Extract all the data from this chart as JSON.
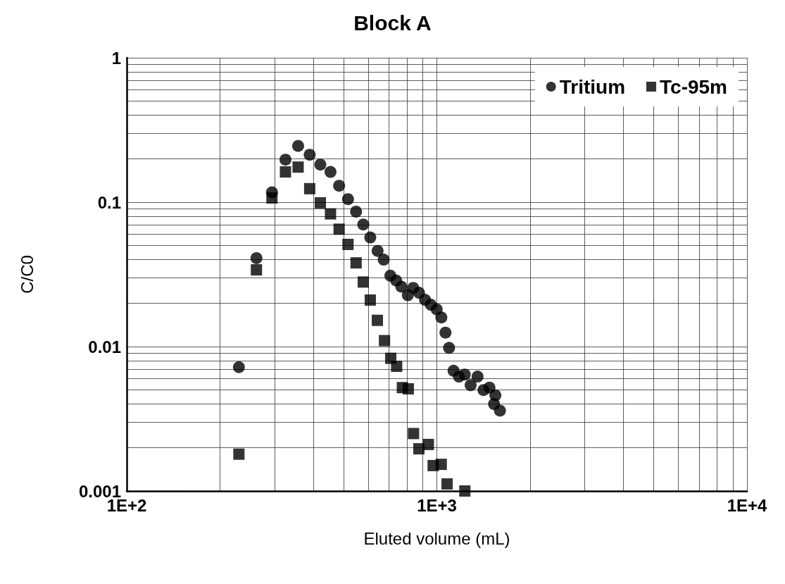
{
  "chart_data": {
    "type": "scatter",
    "title": "Block A",
    "xlabel": "Eluted volume (mL)",
    "ylabel": "C/C0",
    "log": "xy",
    "grid": true,
    "legend": "top right",
    "xlim": [
      100,
      10000
    ],
    "xticks": [
      {
        "value": 100,
        "label": "1E+2"
      },
      {
        "value": 1000,
        "label": "1E+3"
      },
      {
        "value": 10000,
        "label": "1E+4"
      }
    ],
    "ylim": [
      0.001,
      1
    ],
    "yticks": [
      0.001,
      0.01,
      0.1,
      1
    ],
    "series": [
      {
        "name": "Tritium",
        "color": "#000000",
        "marker": "circle",
        "x": [
          230,
          262,
          294,
          325,
          357,
          389,
          421,
          454,
          484,
          517,
          549,
          579,
          610,
          644,
          674,
          708,
          739,
          768,
          806,
          839,
          876,
          916,
          956,
          999,
          1034,
          1066,
          1095,
          1132,
          1178,
          1230,
          1285,
          1353,
          1414,
          1478,
          1544,
          1529,
          1598
        ],
        "values": [
          0.0072,
          0.041,
          0.117,
          0.197,
          0.245,
          0.213,
          0.182,
          0.162,
          0.13,
          0.105,
          0.086,
          0.07,
          0.057,
          0.046,
          0.04,
          0.031,
          0.0287,
          0.026,
          0.0227,
          0.0255,
          0.0236,
          0.0211,
          0.0195,
          0.0181,
          0.0159,
          0.0125,
          0.0098,
          0.0068,
          0.0062,
          0.0064,
          0.0054,
          0.0062,
          0.005,
          0.0052,
          0.0046,
          0.004,
          0.0036
        ]
      },
      {
        "name": "Tc-95m",
        "color": "#000000",
        "marker": "square",
        "x": [
          230,
          262,
          294,
          325,
          357,
          389,
          421,
          454,
          484,
          517,
          549,
          579,
          610,
          643,
          678,
          710,
          742,
          774,
          809,
          841,
          875,
          939,
          973,
          1033,
          1079,
          1231
        ],
        "values": [
          0.0018,
          0.034,
          0.107,
          0.162,
          0.175,
          0.124,
          0.099,
          0.083,
          0.065,
          0.051,
          0.038,
          0.028,
          0.021,
          0.0152,
          0.011,
          0.0083,
          0.0073,
          0.0052,
          0.0051,
          0.0025,
          0.00196,
          0.0021,
          0.0015,
          0.00153,
          0.00112,
          0.001
        ]
      }
    ]
  }
}
